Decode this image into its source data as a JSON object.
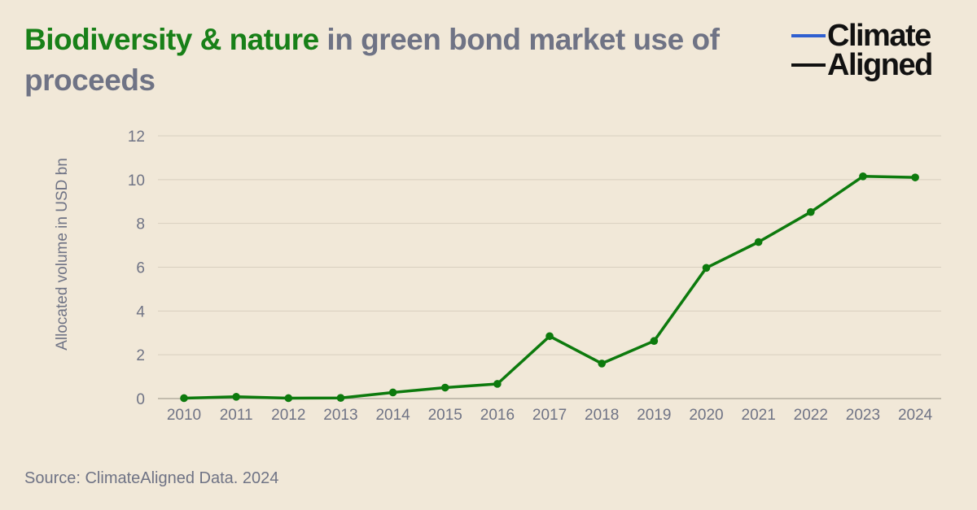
{
  "header": {
    "title_highlight": "Biodiversity & nature",
    "title_rest": " in green bond market use of proceeds"
  },
  "logo": {
    "line1": "Climate",
    "line2": "Aligned",
    "line1_color": "#2f5fd0",
    "line2_color": "#111111"
  },
  "chart_data": {
    "type": "line",
    "title": "Biodiversity & nature in green bond market use of proceeds",
    "xlabel": "",
    "ylabel": "Allocated volume in USD bn",
    "x": [
      "2010",
      "2011",
      "2012",
      "2013",
      "2014",
      "2015",
      "2016",
      "2017",
      "2018",
      "2019",
      "2020",
      "2021",
      "2022",
      "2023",
      "2024"
    ],
    "series": [
      {
        "values": [
          0.02,
          0.08,
          0.02,
          0.03,
          0.28,
          0.5,
          0.67,
          2.85,
          1.6,
          2.63,
          5.97,
          7.15,
          8.52,
          10.15,
          10.1
        ],
        "color": "#0d7a0d"
      }
    ],
    "ylim": [
      0,
      12
    ],
    "yticks": [
      0,
      2,
      4,
      6,
      8,
      10,
      12
    ],
    "grid": true,
    "legend": "none"
  },
  "footer": {
    "source": "Source: ClimateAligned Data. 2024"
  }
}
